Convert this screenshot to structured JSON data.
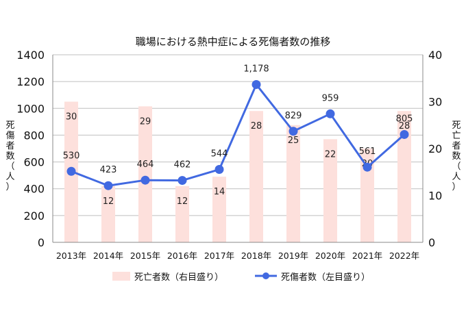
{
  "chart_data": {
    "type": "bar+line",
    "title": "職場における熱中症による死傷者数の推移",
    "categories": [
      "2013年",
      "2014年",
      "2015年",
      "2016年",
      "2017年",
      "2018年",
      "2019年",
      "2020年",
      "2021年",
      "2022年"
    ],
    "series": [
      {
        "name": "死亡者数（右目盛り）",
        "kind": "bar",
        "axis": "right",
        "values": [
          30,
          12,
          29,
          12,
          14,
          28,
          25,
          22,
          20,
          28
        ],
        "labels": [
          "30",
          "12",
          "29",
          "12",
          "14",
          "28",
          "25",
          "22",
          "20",
          "28"
        ],
        "color": "#fde0dc"
      },
      {
        "name": "死傷者数（左目盛り）",
        "kind": "line",
        "axis": "left",
        "values": [
          530,
          423,
          464,
          462,
          544,
          1178,
          829,
          959,
          561,
          805
        ],
        "labels": [
          "530",
          "423",
          "464",
          "462",
          "544",
          "1,178",
          "829",
          "959",
          "561",
          "805"
        ],
        "color": "#4169e1"
      }
    ],
    "y_left": {
      "label": "死傷者数（人）",
      "ylim": [
        0,
        1400
      ],
      "ticks": [
        "0",
        "200",
        "400",
        "600",
        "800",
        "1000",
        "1200",
        "1400"
      ]
    },
    "y_right": {
      "label": "死亡者数（人）",
      "ylim": [
        0,
        40
      ],
      "ticks": [
        "0",
        "10",
        "20",
        "30",
        "40"
      ]
    },
    "grid": true,
    "legend": "bottom"
  }
}
